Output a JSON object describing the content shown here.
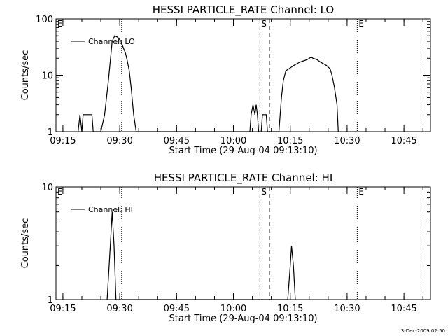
{
  "footer": {
    "timestamp": "3-Dec-2009 02:50"
  },
  "chart_data": [
    {
      "type": "line",
      "title": "HESSI PARTICLE_RATE Channel: LO",
      "xlabel": "Start Time (29-Aug-04 09:13:10)",
      "ylabel": "Counts/sec",
      "yscale": "log",
      "ylim": [
        1,
        100
      ],
      "ytick_labels": [
        "1",
        "10",
        "100"
      ],
      "xlim": [
        "09:13:10",
        "10:52:00"
      ],
      "xtick_labels": [
        "09:15",
        "09:30",
        "09:45",
        "10:00",
        "10:15",
        "10:30",
        "10:45"
      ],
      "legend": {
        "position": "top-left",
        "label": "Channel: LO"
      },
      "markers": [
        {
          "label": "E",
          "time": "09:13:10",
          "style": "none"
        },
        {
          "label": "",
          "time": "09:30:30",
          "style": "dotted"
        },
        {
          "label": "S",
          "time": "10:07:00",
          "style": "dashed"
        },
        {
          "label": "",
          "time": "10:09:30",
          "style": "dashed"
        },
        {
          "label": "E",
          "time": "10:32:40",
          "style": "dotted"
        },
        {
          "label": "",
          "time": "10:49:30",
          "style": "dotted"
        }
      ],
      "series": [
        {
          "name": "Channel: LO",
          "points": [
            [
              "09:19:00",
              1
            ],
            [
              "09:19:30",
              2
            ],
            [
              "09:20:00",
              1
            ],
            [
              "09:20:20",
              2
            ],
            [
              "09:22:40",
              2
            ],
            [
              "09:23:00",
              1
            ],
            [
              "09:25:00",
              1
            ],
            [
              "09:26:00",
              2
            ],
            [
              "09:27:00",
              8
            ],
            [
              "09:28:00",
              40
            ],
            [
              "09:28:40",
              50
            ],
            [
              "09:29:30",
              47
            ],
            [
              "09:30:20",
              40
            ],
            [
              "09:31:00",
              30
            ],
            [
              "09:31:30",
              25
            ],
            [
              "09:32:00",
              18
            ],
            [
              "09:32:30",
              12
            ],
            [
              "09:33:00",
              6
            ],
            [
              "09:33:40",
              2
            ],
            [
              "09:34:20",
              1
            ],
            [
              "10:04:20",
              1
            ],
            [
              "10:04:40",
              2
            ],
            [
              "10:05:10",
              3
            ],
            [
              "10:05:40",
              2
            ],
            [
              "10:06:00",
              3
            ],
            [
              "10:06:20",
              2
            ],
            [
              "10:06:40",
              1
            ],
            [
              "10:07:20",
              1
            ],
            [
              "10:07:40",
              2
            ],
            [
              "10:08:40",
              2
            ],
            [
              "10:09:00",
              1
            ],
            [
              "10:12:00",
              1
            ],
            [
              "10:12:40",
              4
            ],
            [
              "10:13:10",
              8
            ],
            [
              "10:13:50",
              12
            ],
            [
              "10:14:40",
              13
            ],
            [
              "10:16:00",
              15
            ],
            [
              "10:17:30",
              17
            ],
            [
              "10:18:30",
              18
            ],
            [
              "10:19:30",
              19
            ],
            [
              "10:20:30",
              21
            ],
            [
              "10:21:00",
              20
            ],
            [
              "10:22:00",
              19
            ],
            [
              "10:23:00",
              17
            ],
            [
              "10:24:30",
              15
            ],
            [
              "10:25:30",
              13
            ],
            [
              "10:26:00",
              10
            ],
            [
              "10:26:40",
              6
            ],
            [
              "10:27:20",
              3
            ],
            [
              "10:27:40",
              1
            ]
          ]
        }
      ]
    },
    {
      "type": "line",
      "title": "HESSI PARTICLE_RATE Channel: HI",
      "xlabel": "Start Time (29-Aug-04 09:13:10)",
      "ylabel": "Counts/sec",
      "yscale": "log",
      "ylim": [
        1,
        10
      ],
      "ytick_labels": [
        "1",
        "10"
      ],
      "xlim": [
        "09:13:10",
        "10:52:00"
      ],
      "xtick_labels": [
        "09:15",
        "09:30",
        "09:45",
        "10:00",
        "10:15",
        "10:30",
        "10:45"
      ],
      "legend": {
        "position": "top-left",
        "label": "Channel: HI"
      },
      "markers": [
        {
          "label": "E",
          "time": "09:13:10",
          "style": "none"
        },
        {
          "label": "",
          "time": "09:30:30",
          "style": "dotted"
        },
        {
          "label": "S",
          "time": "10:07:00",
          "style": "dashed"
        },
        {
          "label": "",
          "time": "10:09:30",
          "style": "dashed"
        },
        {
          "label": "E",
          "time": "10:32:40",
          "style": "dotted"
        },
        {
          "label": "",
          "time": "10:49:30",
          "style": "dotted"
        }
      ],
      "series": [
        {
          "name": "Channel: HI",
          "points": [
            [
              "09:26:40",
              1
            ],
            [
              "09:27:30",
              3
            ],
            [
              "09:28:00",
              6
            ],
            [
              "09:28:30",
              3
            ],
            [
              "09:29:00",
              1
            ],
            [
              "10:14:20",
              1
            ],
            [
              "10:15:00",
              2
            ],
            [
              "10:15:20",
              3
            ],
            [
              "10:15:50",
              2
            ],
            [
              "10:16:20",
              1
            ]
          ]
        }
      ]
    }
  ]
}
